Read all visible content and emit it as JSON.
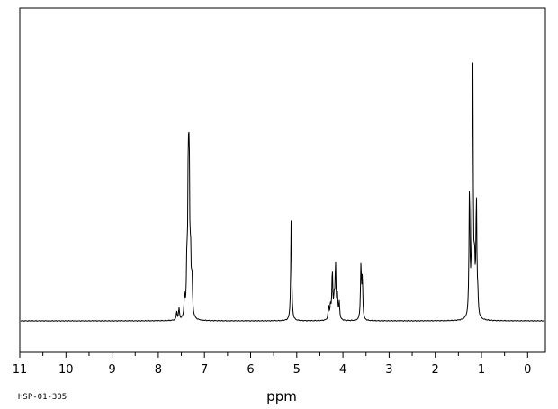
{
  "chart_data": {
    "type": "line",
    "title": "",
    "xlabel": "ppm",
    "ylabel": "",
    "xlim": [
      11,
      -0.4
    ],
    "x_reversed": true,
    "grid": false,
    "x_ticks": [
      "11",
      "10",
      "9",
      "8",
      "7",
      "6",
      "5",
      "4",
      "3",
      "2",
      "1",
      "0"
    ],
    "annotation": "HSP-01-305",
    "baseline": 0,
    "peak_scale_max": 100,
    "series": [
      {
        "peaks": [
          {
            "ppm": 7.6,
            "height": 3
          },
          {
            "ppm": 7.55,
            "height": 4
          },
          {
            "ppm": 7.43,
            "height": 8
          },
          {
            "ppm": 7.38,
            "height": 18
          },
          {
            "ppm": 7.35,
            "height": 49
          },
          {
            "ppm": 7.33,
            "height": 51
          },
          {
            "ppm": 7.3,
            "height": 20
          },
          {
            "ppm": 7.27,
            "height": 13
          },
          {
            "ppm": 5.12,
            "height": 37
          },
          {
            "ppm": 4.31,
            "height": 5
          },
          {
            "ppm": 4.27,
            "height": 5
          },
          {
            "ppm": 4.23,
            "height": 17
          },
          {
            "ppm": 4.19,
            "height": 7
          },
          {
            "ppm": 4.16,
            "height": 19
          },
          {
            "ppm": 4.12,
            "height": 8
          },
          {
            "ppm": 4.08,
            "height": 6
          },
          {
            "ppm": 3.61,
            "height": 19
          },
          {
            "ppm": 3.58,
            "height": 14
          },
          {
            "ppm": 1.26,
            "height": 45
          },
          {
            "ppm": 1.22,
            "height": 7
          },
          {
            "ppm": 1.19,
            "height": 100
          },
          {
            "ppm": 1.15,
            "height": 16
          },
          {
            "ppm": 1.11,
            "height": 41
          },
          {
            "ppm": 1.08,
            "height": 6
          }
        ]
      }
    ]
  }
}
